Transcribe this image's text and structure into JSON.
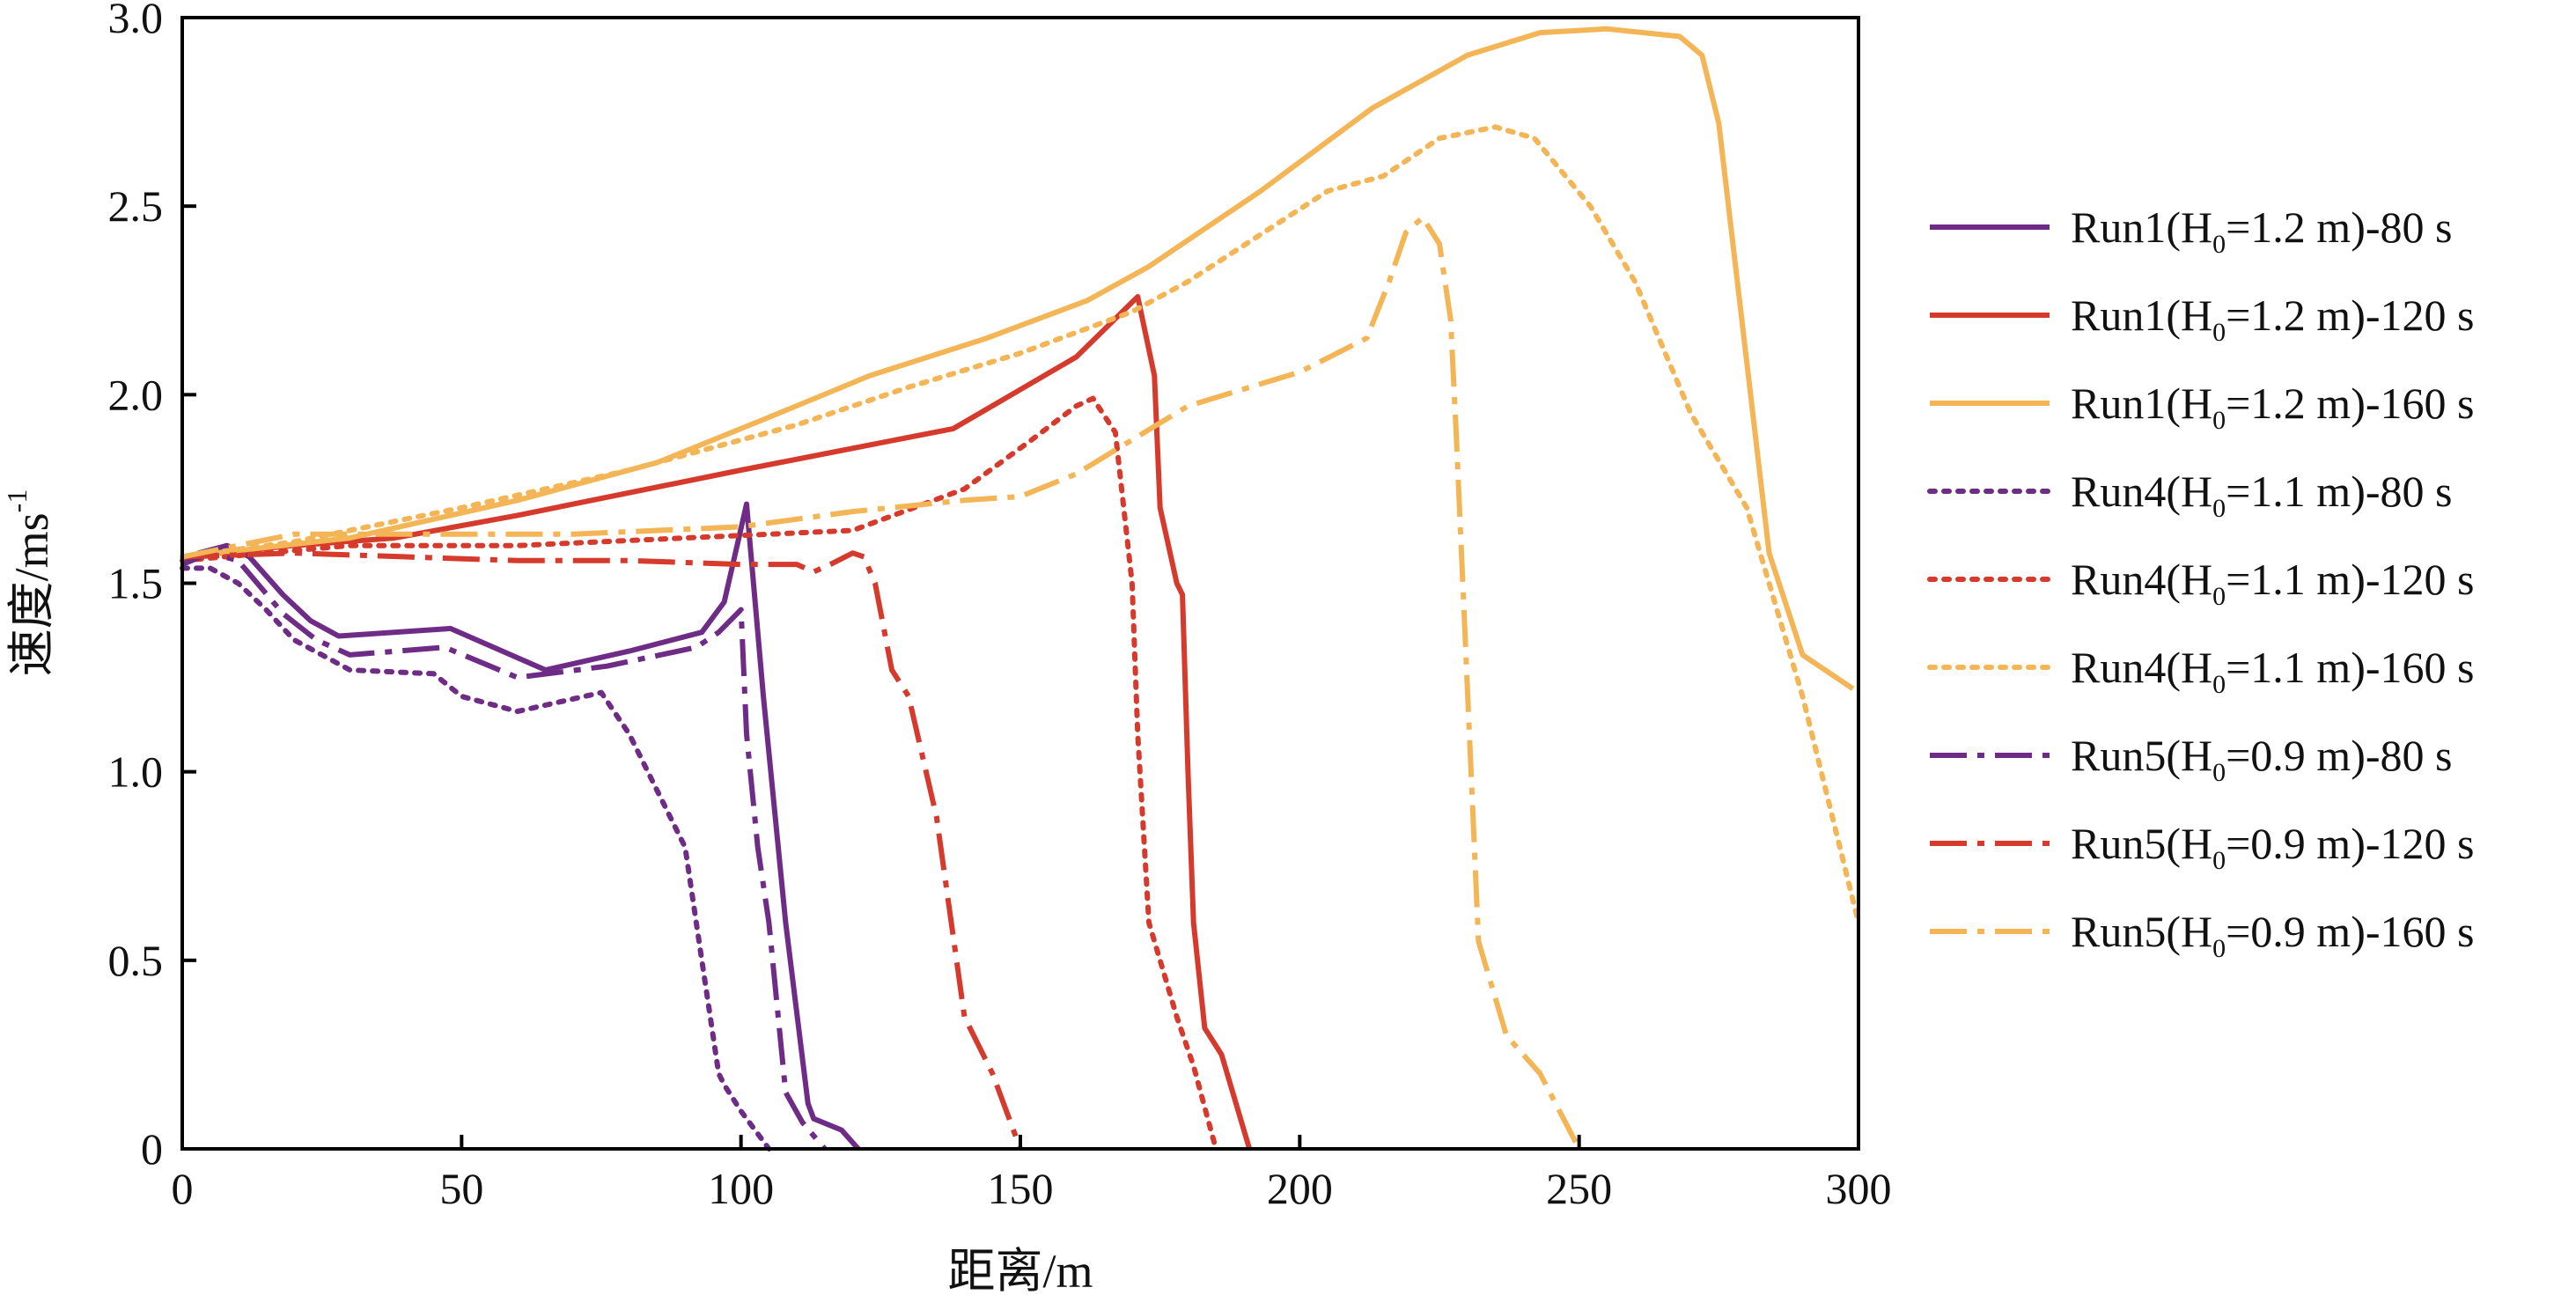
{
  "chart_data": {
    "type": "line",
    "title": "",
    "xlabel": "距离/m",
    "ylabel": "速度/ms",
    "ylabel_sup": "-1",
    "xlim": [
      0,
      300
    ],
    "ylim": [
      0,
      3.0
    ],
    "xticks": [
      0,
      50,
      100,
      150,
      200,
      250,
      300
    ],
    "yticks": [
      0,
      0.5,
      1.0,
      1.5,
      2.0,
      2.5,
      3.0
    ],
    "xtick_labels": [
      "0",
      "50",
      "100",
      "150",
      "200",
      "250",
      "300"
    ],
    "ytick_labels": [
      "0",
      "0.5",
      "1.0",
      "1.5",
      "2.0",
      "2.5",
      "3.0"
    ],
    "grid": false,
    "legend_position": "right, outside plot",
    "colors": {
      "purple": "#6e2c86",
      "red": "#d53a2c",
      "orange": "#f3b555"
    },
    "series": [
      {
        "name": "Run1(H0=1.2 m)-80 s",
        "legend": {
          "pre": "Run1(H",
          "sub": "0",
          "post": "=1.2 m)-80 s"
        },
        "color": "#6e2c86",
        "dash": "solid",
        "x": [
          0,
          3,
          8,
          12,
          18,
          23,
          28,
          48,
          65,
          80,
          93,
          97,
          101,
          104,
          108,
          112,
          113,
          118,
          121
        ],
        "y": [
          1.55,
          1.58,
          1.6,
          1.57,
          1.47,
          1.4,
          1.36,
          1.38,
          1.27,
          1.32,
          1.37,
          1.45,
          1.71,
          1.2,
          0.6,
          0.12,
          0.08,
          0.05,
          0.0
        ]
      },
      {
        "name": "Run1(H0=1.2 m)-120 s",
        "legend": {
          "pre": "Run1(H",
          "sub": "0",
          "post": "=1.2 m)-120 s"
        },
        "color": "#d53a2c",
        "dash": "solid",
        "x": [
          0,
          20,
          38,
          60,
          100,
          138,
          160,
          171,
          174,
          175,
          178,
          179,
          180,
          181,
          183,
          186,
          191
        ],
        "y": [
          1.57,
          1.6,
          1.62,
          1.68,
          1.8,
          1.91,
          2.1,
          2.26,
          2.05,
          1.7,
          1.5,
          1.47,
          1.0,
          0.6,
          0.32,
          0.25,
          0.0
        ]
      },
      {
        "name": "Run1(H0=1.2 m)-160 s",
        "legend": {
          "pre": "Run1(H",
          "sub": "0",
          "post": "=1.2 m)-160 s"
        },
        "color": "#f3b555",
        "dash": "solid",
        "x": [
          0,
          30,
          60,
          85,
          105,
          123,
          144,
          162,
          173,
          193,
          213,
          230,
          243,
          255,
          268,
          272,
          275,
          284,
          290,
          299
        ],
        "y": [
          1.57,
          1.62,
          1.72,
          1.82,
          1.94,
          2.05,
          2.15,
          2.25,
          2.34,
          2.54,
          2.76,
          2.9,
          2.96,
          2.97,
          2.95,
          2.9,
          2.72,
          1.58,
          1.31,
          1.22
        ]
      },
      {
        "name": "Run4(H0=1.1 m)-80 s",
        "legend": {
          "pre": "Run4(H",
          "sub": "0",
          "post": "=1.1 m)-80 s"
        },
        "color": "#6e2c86",
        "dash": "dot",
        "x": [
          0,
          5,
          10,
          15,
          20,
          25,
          30,
          45,
          50,
          60,
          75,
          80,
          90,
          93,
          96,
          97,
          100,
          105
        ],
        "y": [
          1.54,
          1.54,
          1.5,
          1.43,
          1.35,
          1.31,
          1.27,
          1.26,
          1.2,
          1.16,
          1.21,
          1.1,
          0.8,
          0.5,
          0.2,
          0.17,
          0.1,
          0.0
        ]
      },
      {
        "name": "Run4(H0=1.1 m)-120 s",
        "legend": {
          "pre": "Run4(H",
          "sub": "0",
          "post": "=1.1 m)-120 s"
        },
        "color": "#d53a2c",
        "dash": "dot",
        "x": [
          0,
          30,
          60,
          90,
          120,
          140,
          152,
          160,
          163,
          167,
          170,
          171,
          173,
          178,
          181,
          185
        ],
        "y": [
          1.56,
          1.6,
          1.6,
          1.62,
          1.64,
          1.75,
          1.88,
          1.97,
          1.99,
          1.9,
          1.5,
          1.1,
          0.6,
          0.35,
          0.22,
          0.0
        ]
      },
      {
        "name": "Run4(H0=1.1 m)-160 s",
        "legend": {
          "pre": "Run4(H",
          "sub": "0",
          "post": "=1.1 m)-160 s"
        },
        "color": "#f3b555",
        "dash": "dot",
        "x": [
          0,
          20,
          50,
          80,
          110,
          130,
          150,
          170,
          180,
          205,
          215,
          225,
          235,
          242,
          252,
          260,
          270,
          280,
          290,
          300
        ],
        "y": [
          1.57,
          1.61,
          1.7,
          1.8,
          1.92,
          2.02,
          2.11,
          2.22,
          2.3,
          2.54,
          2.58,
          2.68,
          2.71,
          2.68,
          2.5,
          2.3,
          1.95,
          1.7,
          1.2,
          0.6
        ]
      },
      {
        "name": "Run5(H0=0.9 m)-80 s",
        "legend": {
          "pre": "Run5(H",
          "sub": "0",
          "post": "=0.9 m)-80 s"
        },
        "color": "#6e2c86",
        "dash": "dashdot",
        "x": [
          0,
          5,
          10,
          14,
          18,
          24,
          30,
          47,
          60,
          76,
          92,
          96,
          100,
          101,
          103,
          105,
          108,
          111,
          115
        ],
        "y": [
          1.55,
          1.58,
          1.56,
          1.49,
          1.42,
          1.35,
          1.31,
          1.33,
          1.25,
          1.28,
          1.33,
          1.37,
          1.43,
          1.1,
          0.8,
          0.6,
          0.15,
          0.07,
          0.0
        ]
      },
      {
        "name": "Run5(H0=0.9 m)-120 s",
        "legend": {
          "pre": "Run5(H",
          "sub": "0",
          "post": "=0.9 m)-120 s"
        },
        "color": "#d53a2c",
        "dash": "dashdot",
        "x": [
          0,
          20,
          40,
          60,
          80,
          100,
          110,
          113,
          116,
          120,
          122,
          124,
          127,
          130,
          135,
          140,
          145,
          150
        ],
        "y": [
          1.57,
          1.58,
          1.57,
          1.56,
          1.56,
          1.55,
          1.55,
          1.53,
          1.55,
          1.58,
          1.57,
          1.5,
          1.27,
          1.2,
          0.88,
          0.35,
          0.2,
          0.0
        ]
      },
      {
        "name": "Run5(H0=0.9 m)-160 s",
        "legend": {
          "pre": "Run5(H",
          "sub": "0",
          "post": "=0.9 m)-160 s"
        },
        "color": "#f3b555",
        "dash": "dashdot",
        "x": [
          0,
          20,
          40,
          70,
          100,
          120,
          140,
          150,
          160,
          170,
          180,
          200,
          212,
          216,
          219,
          222,
          225,
          227,
          228,
          232,
          237,
          243,
          250
        ],
        "y": [
          1.57,
          1.63,
          1.63,
          1.63,
          1.65,
          1.69,
          1.72,
          1.73,
          1.79,
          1.88,
          1.97,
          2.06,
          2.15,
          2.3,
          2.43,
          2.47,
          2.4,
          2.2,
          1.9,
          0.55,
          0.3,
          0.2,
          0.0
        ]
      }
    ]
  }
}
